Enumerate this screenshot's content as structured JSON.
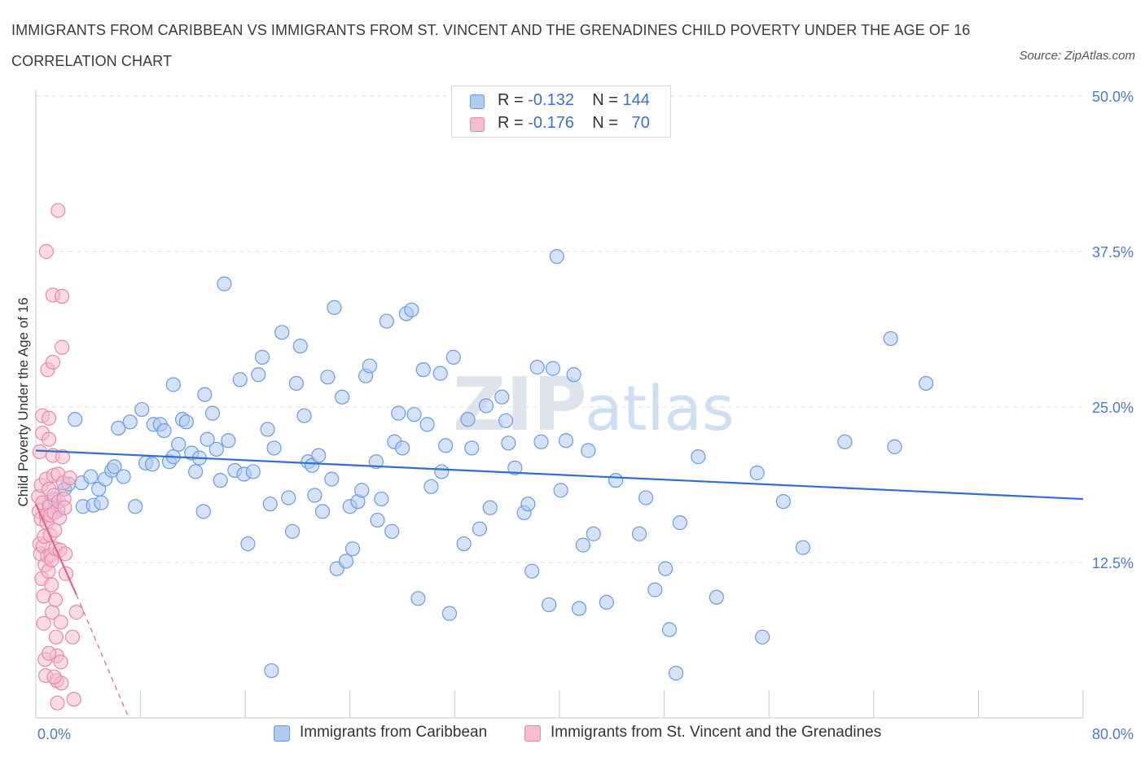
{
  "header": {
    "title": "IMMIGRANTS FROM CARIBBEAN VS IMMIGRANTS FROM ST. VINCENT AND THE GRENADINES CHILD POVERTY UNDER THE AGE OF 16 CORRELATION CHART",
    "source": "Source: ZipAtlas.com"
  },
  "watermark": {
    "zip": "ZIP",
    "atlas": "atlas"
  },
  "legend": {
    "rows": [
      {
        "r_label": "R = ",
        "r_value": "-0.132",
        "n_label": "N = ",
        "n_value": "144"
      },
      {
        "r_label": "R = ",
        "r_value": "-0.176",
        "n_label": "N = ",
        "n_value": "70"
      }
    ]
  },
  "colors": {
    "blue_fill": "#aecbf0",
    "blue_stroke": "#6d9be0",
    "blue_line": "#2f6fcf",
    "pink_fill": "#f6bcd0",
    "pink_stroke": "#e68aa8",
    "pink_line": "#e0628e",
    "tick_text": "#4a7bc8",
    "grid": "#dcdcdc"
  },
  "chart_data": {
    "type": "scatter",
    "xlabel": "",
    "ylabel": "Child Poverty Under the Age of 16",
    "xlim": [
      0,
      80
    ],
    "ylim": [
      0,
      50
    ],
    "x_tick_labels": [
      {
        "value": 0,
        "label": "0.0%"
      },
      {
        "value": 80,
        "label": "80.0%"
      }
    ],
    "y_tick_labels": [
      {
        "value": 12.5,
        "label": "12.5%"
      },
      {
        "value": 25,
        "label": "25.0%"
      },
      {
        "value": 37.5,
        "label": "37.5%"
      },
      {
        "value": 50,
        "label": "50.0%"
      }
    ],
    "grid": "horizontal dashed",
    "series": [
      {
        "name": "Immigrants from Caribbean",
        "color_key": "blue",
        "trend": {
          "x": [
            0,
            80
          ],
          "y": [
            21.5,
            17.6
          ],
          "extended_dashed": false
        },
        "points": [
          [
            1.0,
            17.1
          ],
          [
            1.4,
            17.6
          ],
          [
            1.7,
            16.7
          ],
          [
            2.2,
            18.4
          ],
          [
            2.5,
            18.8
          ],
          [
            3.0,
            24.0
          ],
          [
            3.5,
            18.9
          ],
          [
            3.6,
            17.0
          ],
          [
            4.2,
            19.4
          ],
          [
            4.4,
            17.1
          ],
          [
            4.8,
            18.4
          ],
          [
            5.0,
            17.3
          ],
          [
            5.3,
            19.2
          ],
          [
            5.8,
            19.9
          ],
          [
            6.0,
            20.2
          ],
          [
            6.3,
            23.3
          ],
          [
            6.7,
            19.4
          ],
          [
            7.2,
            23.8
          ],
          [
            7.6,
            17.0
          ],
          [
            8.1,
            24.8
          ],
          [
            8.4,
            20.5
          ],
          [
            8.9,
            20.4
          ],
          [
            9.0,
            23.6
          ],
          [
            9.5,
            23.6
          ],
          [
            9.8,
            23.1
          ],
          [
            10.2,
            20.6
          ],
          [
            10.5,
            26.8
          ],
          [
            10.9,
            22.0
          ],
          [
            11.2,
            24.0
          ],
          [
            11.5,
            23.8
          ],
          [
            11.9,
            21.3
          ],
          [
            12.2,
            19.8
          ],
          [
            12.5,
            20.9
          ],
          [
            12.8,
            16.6
          ],
          [
            13.1,
            22.4
          ],
          [
            13.5,
            24.5
          ],
          [
            13.8,
            21.6
          ],
          [
            14.1,
            19.1
          ],
          [
            14.4,
            34.9
          ],
          [
            14.7,
            22.3
          ],
          [
            15.2,
            19.9
          ],
          [
            15.6,
            27.2
          ],
          [
            15.9,
            19.6
          ],
          [
            16.2,
            14.0
          ],
          [
            16.6,
            19.8
          ],
          [
            17.0,
            27.6
          ],
          [
            17.3,
            29.0
          ],
          [
            17.7,
            23.2
          ],
          [
            17.9,
            17.2
          ],
          [
            18.2,
            21.7
          ],
          [
            18.8,
            31.0
          ],
          [
            19.3,
            17.7
          ],
          [
            19.6,
            15.0
          ],
          [
            19.9,
            26.9
          ],
          [
            20.2,
            29.9
          ],
          [
            20.5,
            24.3
          ],
          [
            20.8,
            20.6
          ],
          [
            21.1,
            20.3
          ],
          [
            21.3,
            17.9
          ],
          [
            21.6,
            21.1
          ],
          [
            21.9,
            16.6
          ],
          [
            22.3,
            27.4
          ],
          [
            22.6,
            19.2
          ],
          [
            22.8,
            33.0
          ],
          [
            23.0,
            12.0
          ],
          [
            23.4,
            25.8
          ],
          [
            23.7,
            12.6
          ],
          [
            24.0,
            17.0
          ],
          [
            24.2,
            13.6
          ],
          [
            24.6,
            17.4
          ],
          [
            24.9,
            18.3
          ],
          [
            25.2,
            27.5
          ],
          [
            25.5,
            28.3
          ],
          [
            26.0,
            20.6
          ],
          [
            26.1,
            15.9
          ],
          [
            26.4,
            17.6
          ],
          [
            26.8,
            31.9
          ],
          [
            27.2,
            15.0
          ],
          [
            27.4,
            22.2
          ],
          [
            27.7,
            24.5
          ],
          [
            28.0,
            21.7
          ],
          [
            28.3,
            32.5
          ],
          [
            28.7,
            32.8
          ],
          [
            28.9,
            24.4
          ],
          [
            29.2,
            9.6
          ],
          [
            29.6,
            28.0
          ],
          [
            29.9,
            23.6
          ],
          [
            30.2,
            18.6
          ],
          [
            30.9,
            27.7
          ],
          [
            31.3,
            21.9
          ],
          [
            31.6,
            8.4
          ],
          [
            31.9,
            29.0
          ],
          [
            32.7,
            14.0
          ],
          [
            33.0,
            24.0
          ],
          [
            33.3,
            21.7
          ],
          [
            33.9,
            15.2
          ],
          [
            34.4,
            25.1
          ],
          [
            34.7,
            16.9
          ],
          [
            35.6,
            25.8
          ],
          [
            35.9,
            23.9
          ],
          [
            36.1,
            22.1
          ],
          [
            36.6,
            20.1
          ],
          [
            37.3,
            16.5
          ],
          [
            37.6,
            17.2
          ],
          [
            37.9,
            11.8
          ],
          [
            38.3,
            28.2
          ],
          [
            38.6,
            22.2
          ],
          [
            39.2,
            9.1
          ],
          [
            39.5,
            28.1
          ],
          [
            39.8,
            37.1
          ],
          [
            40.1,
            18.3
          ],
          [
            40.5,
            22.3
          ],
          [
            41.1,
            27.6
          ],
          [
            41.5,
            8.8
          ],
          [
            41.8,
            13.9
          ],
          [
            42.2,
            21.5
          ],
          [
            42.6,
            14.8
          ],
          [
            43.6,
            9.3
          ],
          [
            44.3,
            19.1
          ],
          [
            46.1,
            14.8
          ],
          [
            46.6,
            17.7
          ],
          [
            47.3,
            10.3
          ],
          [
            48.1,
            12.0
          ],
          [
            48.4,
            7.1
          ],
          [
            49.2,
            15.7
          ],
          [
            50.6,
            21.0
          ],
          [
            52.0,
            9.7
          ],
          [
            55.1,
            19.7
          ],
          [
            55.5,
            6.5
          ],
          [
            57.1,
            17.4
          ],
          [
            58.6,
            13.7
          ],
          [
            61.8,
            22.2
          ],
          [
            65.3,
            30.5
          ],
          [
            65.6,
            21.8
          ],
          [
            68.0,
            26.9
          ],
          [
            18.0,
            3.8
          ],
          [
            48.9,
            3.6
          ],
          [
            10.5,
            21.0
          ],
          [
            12.9,
            26.0
          ],
          [
            31.0,
            19.8
          ]
        ]
      },
      {
        "name": "Immigrants from St. Vincent and the Grenadines",
        "color_key": "pink",
        "trend": {
          "x": [
            0,
            3.1
          ],
          "y": [
            17.2,
            9.9
          ],
          "dashed_extension_to": [
            7.1,
            0
          ]
        },
        "points": [
          [
            0.2,
            17.8
          ],
          [
            0.25,
            16.6
          ],
          [
            0.3,
            21.4
          ],
          [
            0.3,
            14.0
          ],
          [
            0.35,
            13.2
          ],
          [
            0.4,
            18.7
          ],
          [
            0.4,
            16.0
          ],
          [
            0.45,
            11.2
          ],
          [
            0.5,
            24.3
          ],
          [
            0.5,
            22.9
          ],
          [
            0.5,
            17.3
          ],
          [
            0.55,
            13.8
          ],
          [
            0.6,
            9.8
          ],
          [
            0.6,
            7.6
          ],
          [
            0.65,
            14.6
          ],
          [
            0.7,
            12.3
          ],
          [
            0.7,
            4.7
          ],
          [
            0.75,
            3.4
          ],
          [
            0.8,
            37.5
          ],
          [
            0.8,
            19.2
          ],
          [
            0.8,
            16.3
          ],
          [
            0.85,
            15.7
          ],
          [
            0.9,
            28.0
          ],
          [
            0.9,
            13.0
          ],
          [
            0.95,
            11.8
          ],
          [
            1.0,
            24.1
          ],
          [
            1.0,
            22.4
          ],
          [
            1.0,
            18.4
          ],
          [
            1.05,
            17.0
          ],
          [
            1.1,
            16.3
          ],
          [
            1.1,
            14.7
          ],
          [
            1.15,
            13.1
          ],
          [
            1.2,
            12.7
          ],
          [
            1.2,
            10.7
          ],
          [
            1.25,
            8.5
          ],
          [
            1.3,
            34.0
          ],
          [
            1.3,
            28.6
          ],
          [
            1.3,
            21.1
          ],
          [
            1.35,
            19.5
          ],
          [
            1.4,
            17.9
          ],
          [
            1.4,
            16.5
          ],
          [
            1.45,
            15.1
          ],
          [
            1.5,
            13.6
          ],
          [
            1.5,
            9.5
          ],
          [
            1.55,
            6.5
          ],
          [
            1.6,
            5.0
          ],
          [
            1.6,
            3.0
          ],
          [
            1.65,
            1.2
          ],
          [
            1.7,
            40.8
          ],
          [
            1.7,
            19.6
          ],
          [
            1.75,
            17.4
          ],
          [
            1.8,
            16.1
          ],
          [
            1.85,
            13.5
          ],
          [
            1.9,
            7.7
          ],
          [
            1.9,
            4.5
          ],
          [
            1.95,
            2.8
          ],
          [
            2.0,
            33.9
          ],
          [
            2.0,
            29.8
          ],
          [
            2.05,
            21.0
          ],
          [
            2.1,
            18.9
          ],
          [
            2.15,
            17.6
          ],
          [
            2.2,
            16.9
          ],
          [
            2.25,
            13.2
          ],
          [
            2.3,
            11.6
          ],
          [
            2.6,
            19.3
          ],
          [
            2.8,
            6.5
          ],
          [
            2.9,
            1.5
          ],
          [
            3.1,
            8.5
          ],
          [
            1.0,
            5.2
          ],
          [
            1.4,
            3.3
          ]
        ]
      }
    ]
  },
  "bottom_legend": {
    "items": [
      {
        "label": "Immigrants from Caribbean"
      },
      {
        "label": "Immigrants from St. Vincent and the Grenadines"
      }
    ]
  }
}
